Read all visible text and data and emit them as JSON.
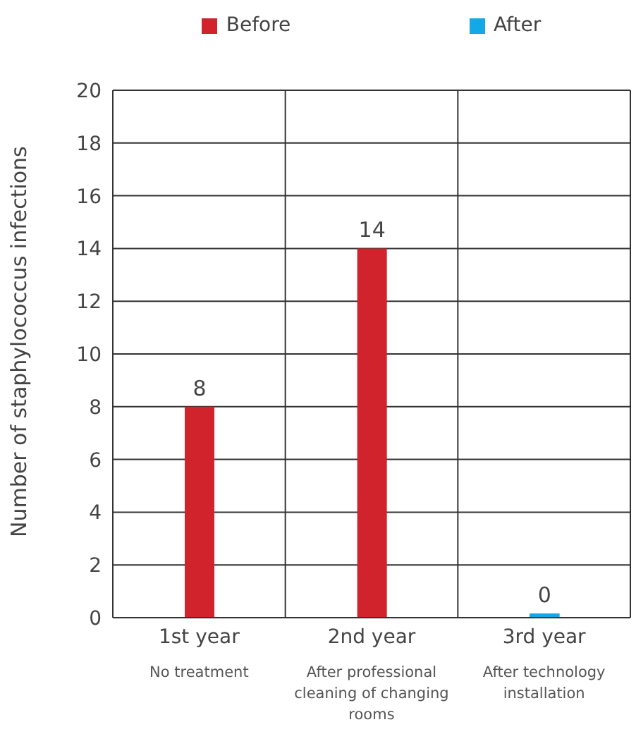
{
  "chart_data": {
    "type": "bar",
    "ylabel": "Number of staphylococcus infections",
    "categories": [
      "1st year",
      "2nd year",
      "3rd year"
    ],
    "series": [
      {
        "name": "Before",
        "color": "#d0232c",
        "values": [
          8,
          14,
          null
        ]
      },
      {
        "name": "After",
        "color": "#12a9e6",
        "values": [
          null,
          null,
          0
        ]
      }
    ],
    "stacked": true,
    "ylim": [
      0,
      20
    ],
    "yticks": [
      0,
      2,
      4,
      6,
      8,
      10,
      12,
      14,
      16,
      18,
      20
    ],
    "grid": true,
    "legend": "top",
    "data_labels": true,
    "annotations": [
      "No treatment",
      "After professional cleaning of changing rooms",
      "After technology installation"
    ]
  }
}
